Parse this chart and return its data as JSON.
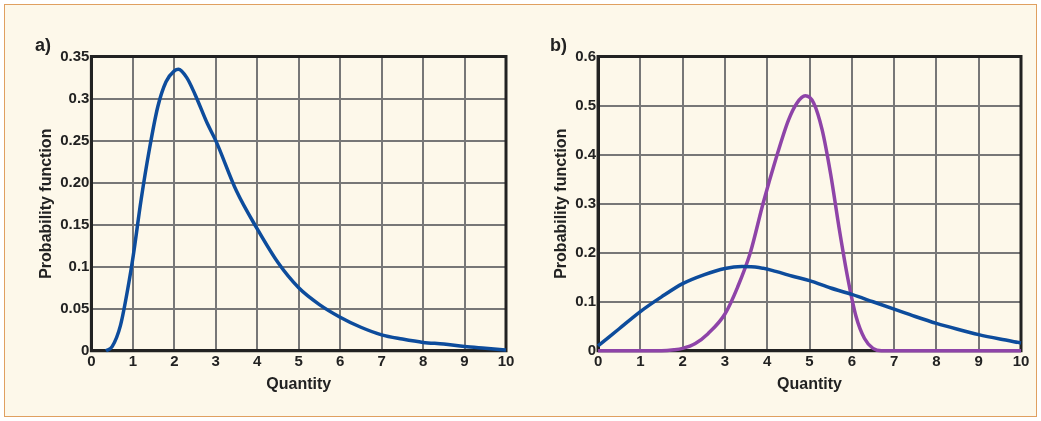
{
  "chart_data": [
    {
      "type": "line",
      "title": "a)",
      "xlabel": "Quantity",
      "ylabel": "Probability function",
      "xlim": [
        0,
        10
      ],
      "xticks": [
        0,
        1,
        2,
        3,
        4,
        5,
        6,
        7,
        8,
        9,
        10
      ],
      "ylim": [
        0,
        0.35
      ],
      "yticks": [
        0,
        0.05,
        0.1,
        0.15,
        {
          "value": 0.2,
          "label": "0.20"
        },
        0.25,
        0.3,
        0.35
      ],
      "grid": true,
      "legend": false,
      "marker": "none",
      "series": [
        {
          "color": "#0d4c9c",
          "x": [
            0.35,
            0.5,
            0.7,
            0.9,
            1.0,
            1.2,
            1.4,
            1.6,
            1.8,
            2.0,
            2.1,
            2.3,
            2.5,
            2.8,
            3.0,
            3.5,
            4.0,
            4.5,
            5.0,
            5.5,
            6.0,
            6.5,
            7.0,
            7.5,
            8.0,
            8.5,
            9.0,
            9.5,
            10
          ],
          "values": [
            0,
            0.005,
            0.03,
            0.08,
            0.11,
            0.18,
            0.24,
            0.29,
            0.32,
            0.333,
            0.335,
            0.325,
            0.305,
            0.27,
            0.25,
            0.19,
            0.145,
            0.105,
            0.075,
            0.055,
            0.04,
            0.028,
            0.019,
            0.014,
            0.01,
            0.008,
            0.005,
            0.003,
            0.001
          ]
        }
      ]
    },
    {
      "type": "line",
      "title": "b)",
      "xlabel": "Quantity",
      "ylabel": "Probability function",
      "xlim": [
        0,
        10
      ],
      "xticks": [
        0,
        1,
        2,
        3,
        4,
        5,
        6,
        7,
        8,
        9,
        10
      ],
      "ylim": [
        0,
        0.6
      ],
      "yticks": [
        0,
        0.1,
        0.2,
        0.3,
        0.4,
        0.5,
        0.6
      ],
      "grid": true,
      "legend": false,
      "marker": "none",
      "series": [
        {
          "color": "#0d4c9c",
          "x": [
            0,
            0.5,
            1,
            1.5,
            2,
            2.5,
            3,
            3.4,
            3.8,
            4.2,
            4.6,
            5,
            5.5,
            6,
            6.5,
            7,
            7.5,
            8,
            8.5,
            9,
            9.5,
            10
          ],
          "values": [
            0.01,
            0.045,
            0.08,
            0.11,
            0.137,
            0.155,
            0.168,
            0.172,
            0.17,
            0.162,
            0.152,
            0.143,
            0.128,
            0.115,
            0.1,
            0.085,
            0.07,
            0.056,
            0.044,
            0.033,
            0.024,
            0.016
          ]
        },
        {
          "color": "#8e44a8",
          "x": [
            0,
            1.5,
            1.8,
            2.0,
            2.3,
            2.6,
            3.0,
            3.3,
            3.6,
            3.9,
            4.2,
            4.5,
            4.7,
            4.9,
            5.1,
            5.3,
            5.5,
            5.7,
            5.9,
            6.1,
            6.3,
            6.5,
            6.7,
            10
          ],
          "values": [
            0,
            0,
            0.002,
            0.005,
            0.015,
            0.035,
            0.075,
            0.13,
            0.2,
            0.3,
            0.39,
            0.47,
            0.505,
            0.52,
            0.505,
            0.45,
            0.36,
            0.25,
            0.15,
            0.07,
            0.025,
            0.005,
            0,
            0
          ]
        }
      ]
    }
  ]
}
